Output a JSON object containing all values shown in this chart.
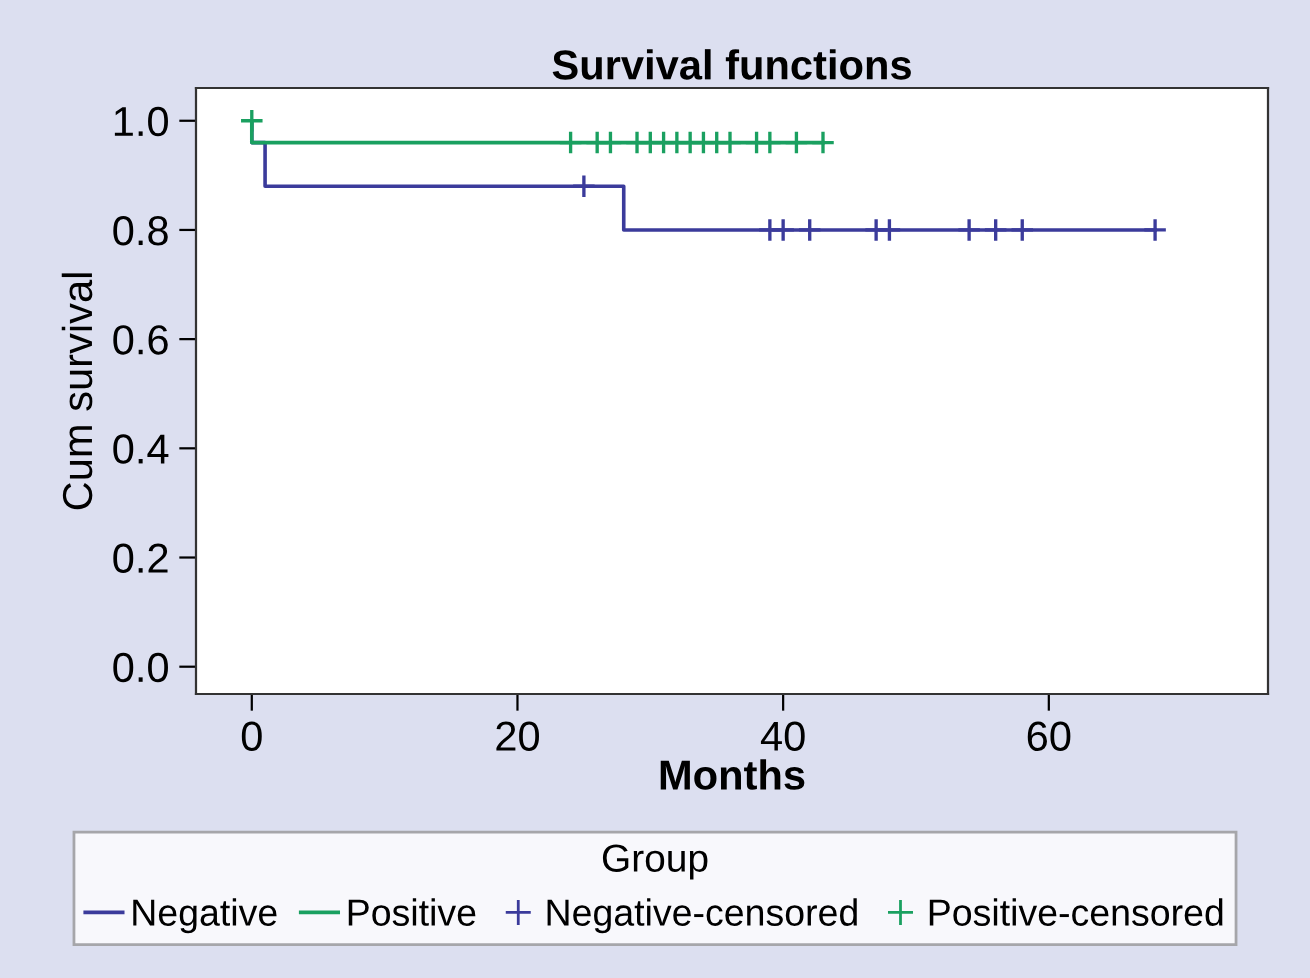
{
  "chart_data": {
    "type": "step",
    "title": "Survival functions",
    "xlabel": "Months",
    "ylabel": "Cum survival",
    "legend_title": "Group",
    "legend": "bottom",
    "xlim": [
      -4.2,
      76.5
    ],
    "ylim": [
      -0.05,
      1.06
    ],
    "xticks": [
      0,
      20,
      40,
      60
    ],
    "yticks": [
      {
        "value": 0,
        "label": "0.0"
      },
      {
        "value": 0.2,
        "label": "0.2"
      },
      {
        "value": 0.4,
        "label": "0.4"
      },
      {
        "value": 0.6,
        "label": "0.6"
      },
      {
        "value": 0.8,
        "label": "0.8"
      },
      {
        "value": 1.0,
        "label": "1.0"
      }
    ],
    "grid": false,
    "series": [
      {
        "name": "Negative",
        "color": "#3b3b9b",
        "x": [
          0,
          0,
          1,
          28,
          68
        ],
        "values": [
          1.0,
          0.96,
          0.88,
          0.8,
          0.8
        ]
      },
      {
        "name": "Positive",
        "color": "#1aa060",
        "x": [
          0,
          0,
          43
        ],
        "values": [
          1.0,
          0.96,
          0.96
        ]
      },
      {
        "name": "Negative-censored",
        "type": "scatter",
        "marker": "cross",
        "color": "#3b3b9b",
        "x": [
          25,
          39,
          40,
          42,
          47,
          48,
          54,
          56,
          58,
          68
        ],
        "values": [
          0.88,
          0.8,
          0.8,
          0.8,
          0.8,
          0.8,
          0.8,
          0.8,
          0.8,
          0.8
        ]
      },
      {
        "name": "Positive-censored",
        "type": "scatter",
        "marker": "cross",
        "color": "#1aa060",
        "x": [
          0,
          24,
          26,
          27,
          29,
          30,
          31,
          32,
          33,
          34,
          35,
          36,
          38,
          39,
          41,
          43
        ],
        "values": [
          1.0,
          0.96,
          0.96,
          0.96,
          0.96,
          0.96,
          0.96,
          0.96,
          0.96,
          0.96,
          0.96,
          0.96,
          0.96,
          0.96,
          0.96,
          0.96
        ]
      }
    ]
  }
}
